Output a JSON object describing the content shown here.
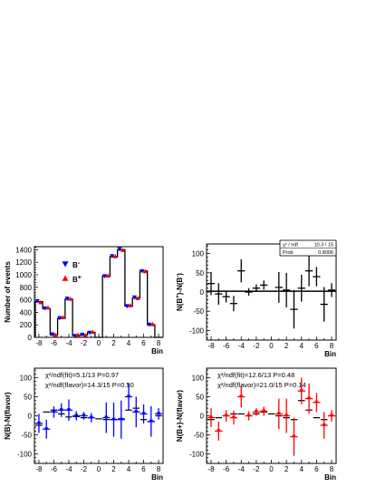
{
  "chart_data": [
    {
      "id": "p1",
      "type": "bar",
      "ylabel": "Number of events",
      "xlabel": "Bin",
      "xlim": [
        -8.6,
        8.6
      ],
      "ylim": [
        0,
        1450
      ],
      "xticks": [
        -8,
        -6,
        -4,
        -2,
        0,
        2,
        4,
        6,
        8
      ],
      "yticks": [
        0,
        200,
        400,
        600,
        800,
        1000,
        1200,
        1400
      ],
      "legend": [
        {
          "label": "B",
          "sup": "-",
          "color": "#0000ff",
          "marker": "down-triangle"
        },
        {
          "label": "B",
          "sup": "+",
          "color": "#ff0000",
          "marker": "up-triangle"
        }
      ],
      "bins": [
        -8,
        -7,
        -6,
        -5,
        -4,
        -3,
        -2,
        -1,
        0,
        1,
        2,
        3,
        4,
        5,
        6,
        7,
        8
      ],
      "histogram": [
        570,
        460,
        40,
        300,
        610,
        30,
        40,
        80,
        0,
        980,
        1290,
        1400,
        500,
        630,
        1060,
        200,
        0
      ],
      "series": [
        {
          "name": "B-",
          "color": "#0000ff",
          "values": [
            580,
            465,
            50,
            310,
            620,
            25,
            45,
            75,
            0,
            980,
            1300,
            1410,
            500,
            640,
            1060,
            205,
            0
          ]
        },
        {
          "name": "B+",
          "color": "#ff0000",
          "values": [
            560,
            475,
            40,
            320,
            615,
            40,
            35,
            85,
            0,
            985,
            1295,
            1395,
            510,
            625,
            1055,
            210,
            0
          ]
        }
      ]
    },
    {
      "id": "p2",
      "type": "scatter",
      "ylabel": "N(B+)-N(B-)",
      "ylabel_parts": [
        "N(B",
        "+",
        ")-N(B",
        "-",
        ")"
      ],
      "xlabel": "Bin",
      "xlim": [
        -8.6,
        8.6
      ],
      "ylim": [
        -125,
        125
      ],
      "xticks": [
        -8,
        -6,
        -4,
        -2,
        0,
        2,
        4,
        6,
        8
      ],
      "yticks": [
        -100,
        -50,
        0,
        50,
        100
      ],
      "stats_box": {
        "chi2_label": "χ² / ndf",
        "chi2_value": "10.3 / 15",
        "prob_label": "Prob",
        "prob_value": "0.8006"
      },
      "fit_line": 2,
      "color": "#000000",
      "points": [
        {
          "x": -8,
          "y": 22,
          "e": 30
        },
        {
          "x": -7,
          "y": -5,
          "e": 28
        },
        {
          "x": -6,
          "y": -12,
          "e": 15
        },
        {
          "x": -5,
          "y": -30,
          "e": 20
        },
        {
          "x": -4,
          "y": 55,
          "e": 30
        },
        {
          "x": -3,
          "y": 0,
          "e": 10
        },
        {
          "x": -2,
          "y": 10,
          "e": 10
        },
        {
          "x": -1,
          "y": 18,
          "e": 12
        },
        {
          "x": 1,
          "y": 12,
          "e": 40
        },
        {
          "x": 2,
          "y": 5,
          "e": 45
        },
        {
          "x": 3,
          "y": -45,
          "e": 50
        },
        {
          "x": 4,
          "y": 10,
          "e": 35
        },
        {
          "x": 5,
          "y": 55,
          "e": 40
        },
        {
          "x": 6,
          "y": 40,
          "e": 25
        },
        {
          "x": 7,
          "y": -32,
          "e": 45
        },
        {
          "x": 8,
          "y": 5,
          "e": 18
        }
      ]
    },
    {
      "id": "p3",
      "type": "scatter",
      "ylabel": "N(B)-N(flavor)",
      "xlabel": "Bin",
      "xlim": [
        -8.6,
        8.6
      ],
      "ylim": [
        -125,
        125
      ],
      "xticks": [
        -8,
        -6,
        -4,
        -2,
        0,
        2,
        4,
        6,
        8
      ],
      "yticks": [
        -100,
        -50,
        0,
        50,
        100
      ],
      "annotation1": "χ²/ndf(fit)=5.1/13  P=0.97",
      "annotation2": "χ²/ndf(flavor)=14.3/15  P=0.50",
      "color": "#0000ff",
      "points": [
        {
          "x": -8,
          "y": -20,
          "e": 25
        },
        {
          "x": -7,
          "y": -35,
          "e": 25
        },
        {
          "x": -6,
          "y": 10,
          "e": 15
        },
        {
          "x": -5,
          "y": 15,
          "e": 18
        },
        {
          "x": -4,
          "y": 15,
          "e": 28
        },
        {
          "x": -3,
          "y": 0,
          "e": 12
        },
        {
          "x": -2,
          "y": 0,
          "e": 10
        },
        {
          "x": -1,
          "y": -5,
          "e": 12
        },
        {
          "x": 1,
          "y": -5,
          "e": 40
        },
        {
          "x": 2,
          "y": -10,
          "e": 45
        },
        {
          "x": 3,
          "y": -10,
          "e": 50
        },
        {
          "x": 4,
          "y": 50,
          "e": 35
        },
        {
          "x": 5,
          "y": 10,
          "e": 40
        },
        {
          "x": 6,
          "y": 5,
          "e": 25
        },
        {
          "x": 7,
          "y": -15,
          "e": 40
        },
        {
          "x": 8,
          "y": 5,
          "e": 15
        }
      ],
      "steps": [
        -25,
        10,
        15,
        5,
        -3,
        -2,
        -5,
        -5,
        -8,
        -10,
        -10,
        -8,
        15,
        20,
        -10,
        -15,
        0
      ]
    },
    {
      "id": "p4",
      "type": "scatter",
      "ylabel": "N(B+)-N(flavor)",
      "xlabel": "Bin",
      "xlim": [
        -8.6,
        8.6
      ],
      "ylim": [
        -125,
        125
      ],
      "xticks": [
        -8,
        -6,
        -4,
        -2,
        0,
        2,
        4,
        6,
        8
      ],
      "yticks": [
        -100,
        -50,
        0,
        50,
        100
      ],
      "annotation1": "χ²/ndf(fit)=12.6/13  P=0.48",
      "annotation2": "χ²/ndf(flavor)=21.0/15  P=0.14",
      "color": "#ff0000",
      "points": [
        {
          "x": -8,
          "y": -5,
          "e": 25
        },
        {
          "x": -7,
          "y": -40,
          "e": 25
        },
        {
          "x": -6,
          "y": 0,
          "e": 15
        },
        {
          "x": -5,
          "y": -5,
          "e": 18
        },
        {
          "x": -4,
          "y": 50,
          "e": 28
        },
        {
          "x": -3,
          "y": 0,
          "e": 12
        },
        {
          "x": -2,
          "y": 10,
          "e": 10
        },
        {
          "x": -1,
          "y": 12,
          "e": 12
        },
        {
          "x": 1,
          "y": 5,
          "e": 40
        },
        {
          "x": 2,
          "y": 0,
          "e": 45
        },
        {
          "x": 3,
          "y": -55,
          "e": 50
        },
        {
          "x": 4,
          "y": 65,
          "e": 35
        },
        {
          "x": 5,
          "y": 45,
          "e": 40
        },
        {
          "x": 6,
          "y": 35,
          "e": 25
        },
        {
          "x": 7,
          "y": -25,
          "e": 35
        },
        {
          "x": 8,
          "y": 0,
          "e": 15
        }
      ],
      "steps": [
        -10,
        -5,
        0,
        5,
        5,
        0,
        5,
        10,
        5,
        0,
        -5,
        -10,
        40,
        15,
        -5,
        -10,
        0
      ]
    }
  ]
}
